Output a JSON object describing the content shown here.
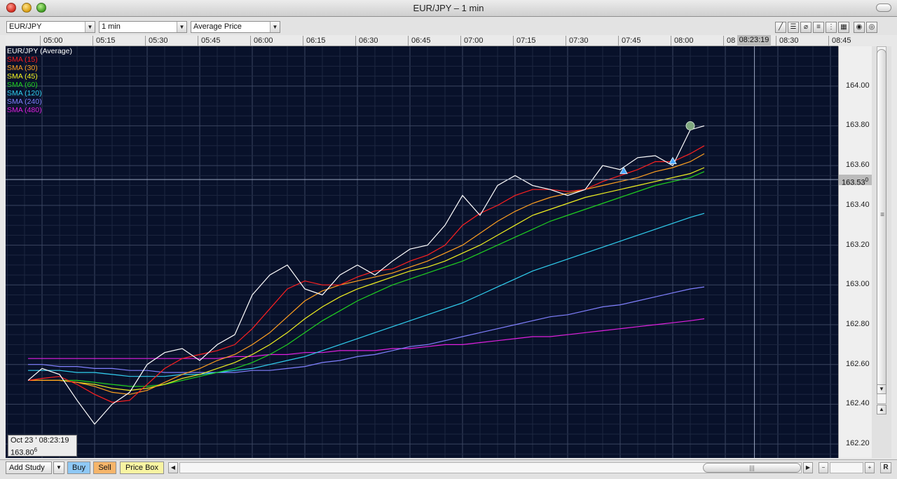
{
  "window": {
    "title": "EUR/JPY – 1 min"
  },
  "toolbar": {
    "symbol": "EUR/JPY",
    "interval": "1 min",
    "price_type": "Average Price",
    "icons": [
      "pencil-icon",
      "lines-icon",
      "no-draw-icon",
      "grid-lines-icon",
      "grid-dots-icon",
      "grid-dense-icon",
      "target-icon",
      "settings-icon"
    ]
  },
  "time_axis": {
    "labels": [
      "05:00",
      "05:15",
      "05:30",
      "05:45",
      "06:00",
      "06:15",
      "06:30",
      "06:45",
      "07:00",
      "07:15",
      "07:30",
      "07:45",
      "08:00",
      "08",
      "08:30",
      "08:45"
    ],
    "cursor_time": "08:23:19"
  },
  "price_axis": {
    "labels": [
      "164.00",
      "163.80",
      "163.60",
      "163.40",
      "163.20",
      "163.00",
      "162.80",
      "162.60",
      "162.40",
      "162.20"
    ],
    "cursor_price": "163.53",
    "cursor_price_sup": "0"
  },
  "legend": [
    {
      "label": "EUR/JPY (Average)",
      "color": "#ffffff"
    },
    {
      "label": "SMA (15)",
      "color": "#ff2020"
    },
    {
      "label": "SMA (30)",
      "color": "#ffa020"
    },
    {
      "label": "SMA (45)",
      "color": "#f0f020"
    },
    {
      "label": "SMA (60)",
      "color": "#20d020"
    },
    {
      "label": "SMA (120)",
      "color": "#30d0f0"
    },
    {
      "label": "SMA (240)",
      "color": "#8080ff"
    },
    {
      "label": "SMA (480)",
      "color": "#e020e0"
    }
  ],
  "info_box": {
    "date": "Oct 23 ' 08:23:19",
    "price": "163.80",
    "price_sup": "6"
  },
  "bottom": {
    "add_study": "Add Study",
    "buy": "Buy",
    "sell": "Sell",
    "price_box": "Price Box",
    "reset": "R"
  },
  "chart_data": {
    "type": "line",
    "title": "",
    "xlabel": "",
    "ylabel": "",
    "ylim": [
      162.13,
      164.2
    ],
    "x": [
      "04:56",
      "05:00",
      "05:05",
      "05:10",
      "05:15",
      "05:20",
      "05:25",
      "05:30",
      "05:35",
      "05:40",
      "05:45",
      "05:50",
      "05:55",
      "06:00",
      "06:05",
      "06:10",
      "06:15",
      "06:20",
      "06:25",
      "06:30",
      "06:35",
      "06:40",
      "06:45",
      "06:50",
      "06:55",
      "07:00",
      "07:05",
      "07:10",
      "07:15",
      "07:20",
      "07:25",
      "07:30",
      "07:35",
      "07:40",
      "07:45",
      "07:50",
      "07:55",
      "08:00",
      "08:05",
      "08:09"
    ],
    "series": [
      {
        "name": "EUR/JPY (Average)",
        "color": "#ffffff",
        "values": [
          162.52,
          162.58,
          162.55,
          162.42,
          162.3,
          162.4,
          162.46,
          162.6,
          162.66,
          162.68,
          162.62,
          162.7,
          162.75,
          162.95,
          163.05,
          163.1,
          162.98,
          162.95,
          163.05,
          163.1,
          163.05,
          163.12,
          163.18,
          163.2,
          163.3,
          163.45,
          163.35,
          163.5,
          163.55,
          163.5,
          163.48,
          163.45,
          163.48,
          163.6,
          163.58,
          163.64,
          163.65,
          163.6,
          163.78,
          163.8
        ]
      },
      {
        "name": "SMA (15)",
        "color": "#ff2020",
        "values": [
          162.52,
          162.53,
          162.54,
          162.5,
          162.45,
          162.41,
          162.42,
          162.5,
          162.58,
          162.63,
          162.65,
          162.67,
          162.7,
          162.78,
          162.88,
          162.98,
          163.02,
          163.0,
          163.0,
          163.04,
          163.07,
          163.08,
          163.12,
          163.15,
          163.2,
          163.3,
          163.36,
          163.4,
          163.45,
          163.48,
          163.48,
          163.47,
          163.48,
          163.52,
          163.55,
          163.58,
          163.62,
          163.62,
          163.66,
          163.7
        ]
      },
      {
        "name": "SMA (30)",
        "color": "#ffa020",
        "values": [
          162.52,
          162.52,
          162.52,
          162.51,
          162.49,
          162.46,
          162.45,
          162.47,
          162.51,
          162.55,
          162.58,
          162.62,
          162.65,
          162.7,
          162.76,
          162.84,
          162.92,
          162.97,
          163.0,
          163.02,
          163.04,
          163.06,
          163.09,
          163.12,
          163.16,
          163.2,
          163.26,
          163.32,
          163.37,
          163.41,
          163.44,
          163.46,
          163.48,
          163.5,
          163.52,
          163.54,
          163.57,
          163.59,
          163.62,
          163.66
        ]
      },
      {
        "name": "SMA (45)",
        "color": "#f0f020",
        "values": [
          162.52,
          162.52,
          162.52,
          162.51,
          162.5,
          162.48,
          162.47,
          162.48,
          162.5,
          162.53,
          162.55,
          162.58,
          162.61,
          162.65,
          162.7,
          162.76,
          162.83,
          162.89,
          162.94,
          162.98,
          163.01,
          163.04,
          163.07,
          163.09,
          163.12,
          163.16,
          163.2,
          163.25,
          163.3,
          163.35,
          163.38,
          163.41,
          163.44,
          163.46,
          163.48,
          163.5,
          163.52,
          163.54,
          163.56,
          163.59
        ]
      },
      {
        "name": "SMA (60)",
        "color": "#20d020",
        "values": [
          162.52,
          162.52,
          162.52,
          162.52,
          162.51,
          162.5,
          162.49,
          162.49,
          162.5,
          162.52,
          162.54,
          162.56,
          162.58,
          162.61,
          162.65,
          162.7,
          162.76,
          162.82,
          162.87,
          162.92,
          162.96,
          163.0,
          163.03,
          163.06,
          163.09,
          163.12,
          163.16,
          163.2,
          163.24,
          163.28,
          163.32,
          163.35,
          163.38,
          163.41,
          163.44,
          163.47,
          163.5,
          163.52,
          163.54,
          163.57
        ]
      },
      {
        "name": "SMA (120)",
        "color": "#30d0f0",
        "values": [
          162.57,
          162.57,
          162.57,
          162.56,
          162.56,
          162.55,
          162.54,
          162.54,
          162.54,
          162.55,
          162.55,
          162.56,
          162.57,
          162.58,
          162.6,
          162.62,
          162.64,
          162.67,
          162.7,
          162.73,
          162.76,
          162.79,
          162.82,
          162.85,
          162.88,
          162.91,
          162.95,
          162.99,
          163.03,
          163.07,
          163.1,
          163.13,
          163.16,
          163.19,
          163.22,
          163.25,
          163.28,
          163.31,
          163.34,
          163.36
        ]
      },
      {
        "name": "SMA (240)",
        "color": "#8080ff",
        "values": [
          162.6,
          162.6,
          162.59,
          162.59,
          162.58,
          162.58,
          162.57,
          162.57,
          162.56,
          162.56,
          162.56,
          162.56,
          162.56,
          162.57,
          162.57,
          162.58,
          162.59,
          162.61,
          162.62,
          162.64,
          162.65,
          162.67,
          162.69,
          162.7,
          162.72,
          162.74,
          162.76,
          162.78,
          162.8,
          162.82,
          162.84,
          162.85,
          162.87,
          162.89,
          162.9,
          162.92,
          162.94,
          162.96,
          162.98,
          162.99
        ]
      },
      {
        "name": "SMA (480)",
        "color": "#e020e0",
        "values": [
          162.63,
          162.63,
          162.63,
          162.63,
          162.63,
          162.63,
          162.63,
          162.63,
          162.63,
          162.63,
          162.63,
          162.63,
          162.64,
          162.64,
          162.65,
          162.65,
          162.66,
          162.66,
          162.67,
          162.67,
          162.67,
          162.68,
          162.68,
          162.69,
          162.7,
          162.7,
          162.71,
          162.72,
          162.73,
          162.74,
          162.74,
          162.75,
          162.76,
          162.77,
          162.78,
          162.79,
          162.8,
          162.81,
          162.82,
          162.83
        ]
      }
    ],
    "grid": true,
    "crosshair": {
      "time": "08:23:19",
      "price": 163.53
    },
    "markers": [
      {
        "type": "buy-triangle",
        "x": "07:46",
        "y": 163.57,
        "color": "#4aa8ff"
      },
      {
        "type": "buy-triangle",
        "x": "08:00",
        "y": 163.62,
        "color": "#4aa8ff"
      },
      {
        "type": "current-dot",
        "x": "08:05",
        "y": 163.8,
        "color": "#7fa87f"
      }
    ]
  }
}
